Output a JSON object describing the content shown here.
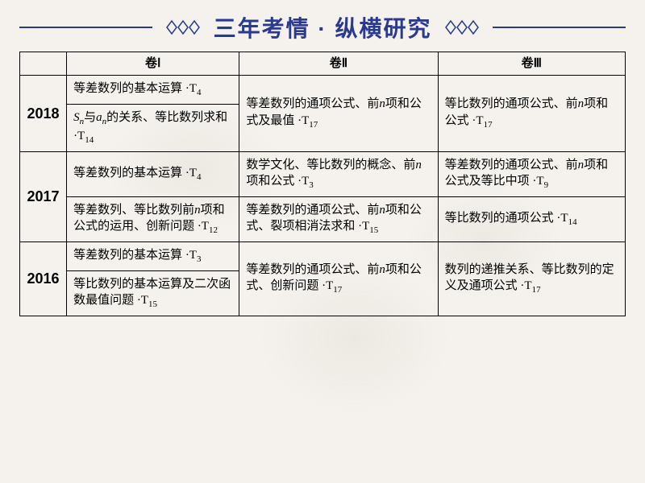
{
  "title": "三年考情 · 纵横研究",
  "colors": {
    "title": "#2a3a8f",
    "border": "#000000",
    "background": "#f5f2ed"
  },
  "fonts": {
    "title_size": 28,
    "cell_size": 15,
    "year_size": 18
  },
  "ornament": {
    "stroke": "#2a3a8f",
    "width": 56,
    "height": 22
  },
  "columns": [
    "",
    "卷Ⅰ",
    "卷Ⅱ",
    "卷Ⅲ"
  ],
  "rows": [
    {
      "year": "2018",
      "col1": [
        "等差数列的基本运算 ·T<sub>4</sub>",
        "<em class=\"i\">S<sub>n</sub></em>与<em class=\"i\">a<sub>n</sub></em>的关系、等比数列求和 ·T<sub>14</sub>"
      ],
      "col2": [
        "等差数列的通项公式、前<em class=\"i\">n</em>项和公式及最值 ·T<sub>17</sub>"
      ],
      "col3": [
        "等比数列的通项公式、前<em class=\"i\">n</em>项和公式 ·T<sub>17</sub>"
      ]
    },
    {
      "year": "2017",
      "col1": [
        "等差数列的基本运算 ·T<sub>4</sub>",
        "等差数列、等比数列前<em class=\"i\">n</em>项和公式的运用、创新问题 ·T<sub>12</sub>"
      ],
      "col2": [
        "数学文化、等比数列的概念、前<em class=\"i\">n</em>项和公式 ·T<sub>3</sub>",
        "等差数列的通项公式、前<em class=\"i\">n</em>项和公式、裂项相消法求和 ·T<sub>15</sub>"
      ],
      "col3": [
        "等差数列的通项公式、前<em class=\"i\">n</em>项和公式及等比中项 ·T<sub>9</sub>",
        "等比数列的通项公式 ·T<sub>14</sub>"
      ]
    },
    {
      "year": "2016",
      "col1": [
        "等差数列的基本运算 ·T<sub>3</sub>",
        "等比数列的基本运算及二次函数最值问题 ·T<sub>15</sub>"
      ],
      "col2": [
        "等差数列的通项公式、前<em class=\"i\">n</em>项和公式、创新问题 ·T<sub>17</sub>"
      ],
      "col3": [
        "数列的递推关系、等比数列的定义及通项公式 ·T<sub>17</sub>"
      ]
    }
  ]
}
